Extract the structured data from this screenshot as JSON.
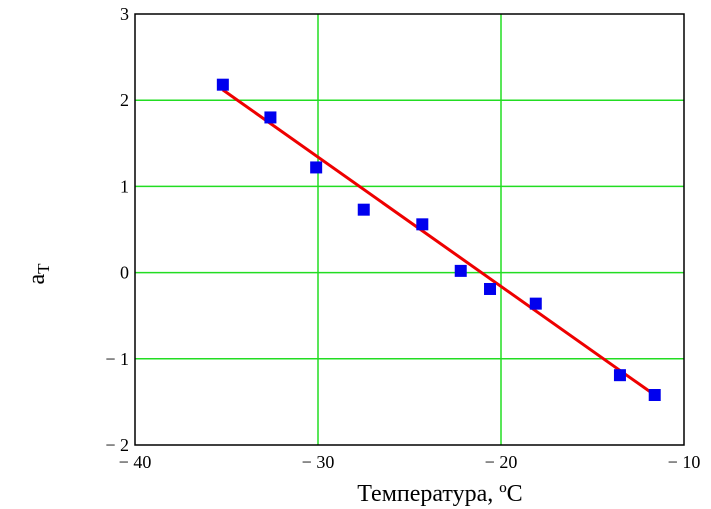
{
  "chart_data": {
    "type": "scatter",
    "title": "",
    "xlabel": "Температура, ºC",
    "ylabel_main": "a",
    "ylabel_sub": "T",
    "xlim": [
      -40,
      -10
    ],
    "ylim": [
      -2,
      3
    ],
    "x_ticks": [
      -40,
      -30,
      -20,
      -10
    ],
    "y_ticks": [
      -2,
      -1,
      0,
      1,
      2,
      3
    ],
    "x_tick_labels": [
      "− 40",
      "− 30",
      "− 20",
      "− 10"
    ],
    "y_tick_labels": [
      "− 2",
      "− 1",
      "0",
      "1",
      "2",
      "3"
    ],
    "grid": true,
    "colors": {
      "grid": "#22dd22",
      "points": "#0000ee",
      "fit": "#ee0000",
      "frame": "#000000"
    },
    "series": [
      {
        "kind": "points",
        "x": [
          -35.2,
          -32.6,
          -30.1,
          -27.5,
          -24.3,
          -22.2,
          -20.6,
          -18.1,
          -13.5,
          -11.6
        ],
        "y": [
          2.18,
          1.8,
          1.22,
          0.73,
          0.56,
          0.02,
          -0.19,
          -0.36,
          -1.19,
          -1.42
        ]
      },
      {
        "kind": "line",
        "x": [
          -35.2,
          -11.6
        ],
        "y": [
          2.12,
          -1.42
        ]
      }
    ]
  }
}
